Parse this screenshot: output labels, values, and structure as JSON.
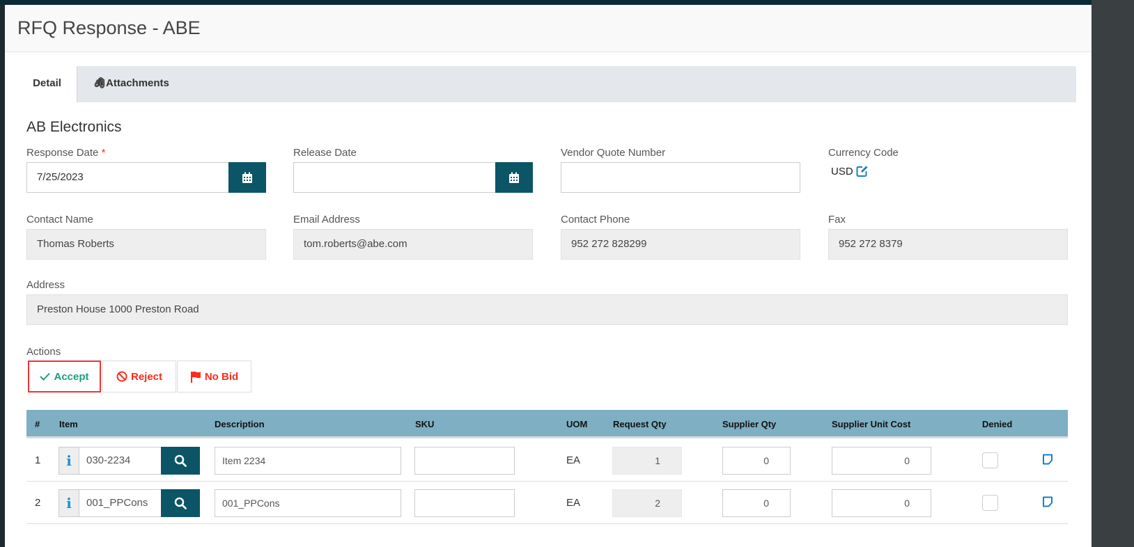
{
  "title": "RFQ Response - ABE",
  "tabs": [
    {
      "label": "Detail",
      "active": true
    },
    {
      "label": "Attachments",
      "icon": "paperclip-icon"
    }
  ],
  "vendor_name": "AB Electronics",
  "fields": {
    "response_date": {
      "label": "Response Date",
      "required_mark": "*",
      "value": "7/25/2023"
    },
    "release_date": {
      "label": "Release Date",
      "value": ""
    },
    "vendor_quote_number": {
      "label": "Vendor Quote Number",
      "value": ""
    },
    "currency_code": {
      "label": "Currency Code",
      "value": "USD"
    },
    "contact_name": {
      "label": "Contact Name",
      "value": "Thomas Roberts"
    },
    "email": {
      "label": "Email Address",
      "value": "tom.roberts@abe.com"
    },
    "contact_phone": {
      "label": "Contact Phone",
      "value": "952 272 828299"
    },
    "fax": {
      "label": "Fax",
      "value": "952 272 8379"
    },
    "address": {
      "label": "Address",
      "value": "Preston House 1000 Preston Road"
    }
  },
  "actions": {
    "label": "Actions",
    "accept": "Accept",
    "reject": "Reject",
    "no_bid": "No Bid"
  },
  "colors": {
    "accent": "#0b5566",
    "header": "#7eafc3",
    "accept": "#1a9e80",
    "reject": "#ff2a1a",
    "selected_border": "#e33"
  },
  "table": {
    "headers": [
      "#",
      "Item",
      "Description",
      "SKU",
      "UOM",
      "Request Qty",
      "Supplier Qty",
      "Supplier Unit Cost",
      "Denied"
    ],
    "rows": [
      {
        "num": "1",
        "item": "030-2234",
        "description": "Item 2234",
        "sku": "",
        "uom": "EA",
        "request_qty": "1",
        "supplier_qty": "0",
        "unit_cost": "0",
        "denied": false
      },
      {
        "num": "2",
        "item": "001_PPCons",
        "description": "001_PPCons",
        "sku": "",
        "uom": "EA",
        "request_qty": "2",
        "supplier_qty": "0",
        "unit_cost": "0",
        "denied": false
      }
    ]
  }
}
